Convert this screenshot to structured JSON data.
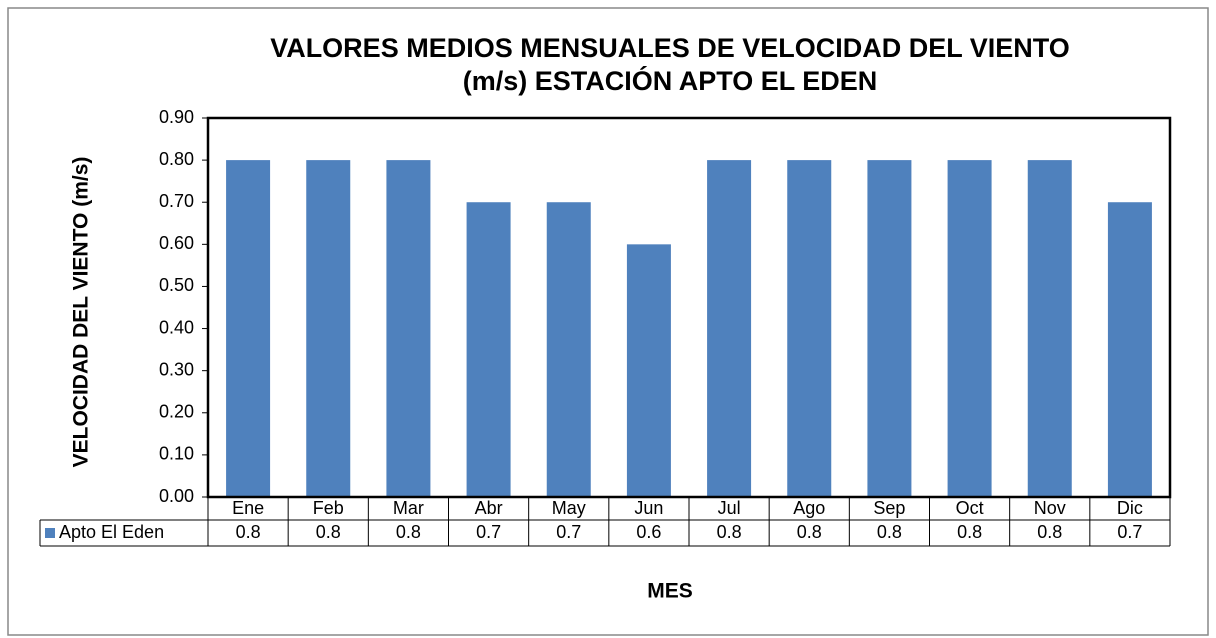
{
  "chart_data": {
    "type": "bar",
    "title": "VALORES MEDIOS MENSUALES DE VELOCIDAD DEL VIENTO",
    "subtitle": "(m/s) ESTACIÓN APTO EL EDEN",
    "y_label": "VELOCIDAD DEL VIENTO (m/s)",
    "x_label": "MES",
    "categories": [
      "Ene",
      "Feb",
      "Mar",
      "Abr",
      "May",
      "Jun",
      "Jul",
      "Ago",
      "Sep",
      "Oct",
      "Nov",
      "Dic"
    ],
    "series": [
      {
        "name": "Apto El Eden",
        "color": "#4f81bd",
        "values": [
          0.8,
          0.8,
          0.8,
          0.7,
          0.7,
          0.6,
          0.8,
          0.8,
          0.8,
          0.8,
          0.8,
          0.7
        ]
      }
    ],
    "ylim": [
      0,
      0.9
    ],
    "yticks": [
      {
        "value": 0,
        "label": "0.00"
      },
      {
        "value": 0.1,
        "label": "0.10"
      },
      {
        "value": 0.2,
        "label": "0.20"
      },
      {
        "value": 0.3,
        "label": "0.30"
      },
      {
        "value": 0.4,
        "label": "0.40"
      },
      {
        "value": 0.5,
        "label": "0.50"
      },
      {
        "value": 0.6,
        "label": "0.60"
      },
      {
        "value": 0.7,
        "label": "0.70"
      },
      {
        "value": 0.8,
        "label": "0.80"
      },
      {
        "value": 0.9,
        "label": "0.90"
      }
    ],
    "grid": false,
    "data_table": true
  }
}
